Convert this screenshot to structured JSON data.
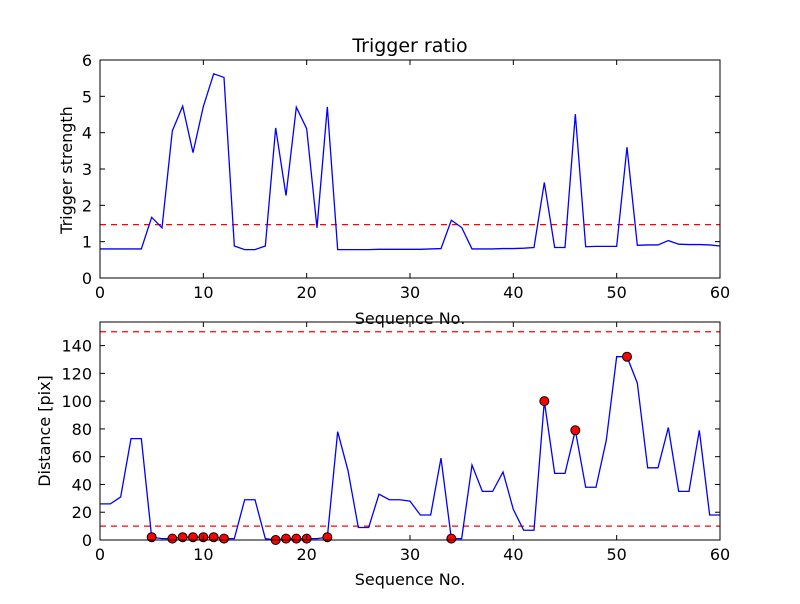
{
  "chart_data": [
    {
      "type": "line",
      "title": "Trigger ratio",
      "xlabel": "Sequence No.",
      "ylabel": "Trigger strength",
      "xlim": [
        0,
        60
      ],
      "ylim": [
        0,
        6
      ],
      "xticks": [
        0,
        10,
        20,
        30,
        40,
        50,
        60
      ],
      "yticks": [
        0,
        1,
        2,
        3,
        4,
        5,
        6
      ],
      "grid": false,
      "colors": {
        "series": "#0000ff",
        "threshold": "#ff0000"
      },
      "series": [
        {
          "x": [
            0,
            1,
            2,
            3,
            4,
            5,
            6,
            7,
            8,
            9,
            10,
            11,
            12,
            13,
            14,
            15,
            16,
            17,
            18,
            19,
            20,
            21,
            22,
            23,
            24,
            25,
            26,
            27,
            28,
            29,
            30,
            31,
            32,
            33,
            34,
            35,
            36,
            37,
            38,
            39,
            40,
            41,
            42,
            43,
            44,
            45,
            46,
            47,
            48,
            49,
            50,
            51,
            52,
            53,
            54,
            55,
            56,
            57,
            58,
            59,
            60
          ],
          "values": [
            0.8,
            0.8,
            0.8,
            0.8,
            0.8,
            1.67,
            1.38,
            4.05,
            4.73,
            3.45,
            4.72,
            5.62,
            5.52,
            0.88,
            0.78,
            0.78,
            0.88,
            4.13,
            2.27,
            4.7,
            4.11,
            1.38,
            4.71,
            0.78,
            0.78,
            0.78,
            0.78,
            0.79,
            0.79,
            0.79,
            0.79,
            0.79,
            0.8,
            0.81,
            1.59,
            1.39,
            0.8,
            0.8,
            0.8,
            0.81,
            0.81,
            0.82,
            0.84,
            2.63,
            0.84,
            0.84,
            4.51,
            0.86,
            0.87,
            0.87,
            0.87,
            3.6,
            0.9,
            0.91,
            0.91,
            1.03,
            0.93,
            0.92,
            0.92,
            0.91,
            0.88
          ]
        }
      ],
      "threshold": 1.47
    },
    {
      "type": "line",
      "title": "",
      "xlabel": "Sequence No.",
      "ylabel": "Distance [pix]",
      "xlim": [
        0,
        60
      ],
      "ylim": [
        0,
        157
      ],
      "xticks": [
        0,
        10,
        20,
        30,
        40,
        50,
        60
      ],
      "yticks": [
        0,
        20,
        40,
        60,
        80,
        100,
        120,
        140
      ],
      "grid": false,
      "colors": {
        "series": "#0000ff",
        "threshold": "#ff0000",
        "markers": "#ff0000"
      },
      "series": [
        {
          "x": [
            0,
            1,
            2,
            3,
            4,
            5,
            6,
            7,
            8,
            9,
            10,
            11,
            12,
            13,
            14,
            15,
            16,
            17,
            18,
            19,
            20,
            21,
            22,
            23,
            24,
            25,
            26,
            27,
            28,
            29,
            30,
            31,
            32,
            33,
            34,
            35,
            36,
            37,
            38,
            39,
            40,
            41,
            42,
            43,
            44,
            45,
            46,
            47,
            48,
            49,
            50,
            51,
            52,
            53,
            54,
            55,
            56,
            57,
            58,
            59,
            60
          ],
          "values": [
            26,
            26,
            31,
            73,
            73,
            2,
            1,
            1,
            2,
            2,
            2,
            2,
            1,
            1,
            29,
            29,
            1,
            0,
            1,
            1,
            1,
            1,
            2,
            78,
            50,
            9,
            9,
            33,
            29,
            29,
            28,
            18,
            18,
            59,
            1,
            1,
            54,
            35,
            35,
            49,
            22,
            7,
            7,
            100,
            48,
            48,
            79,
            38,
            38,
            72,
            132,
            132,
            113,
            52,
            52,
            81,
            35,
            35,
            79,
            18,
            18
          ]
        }
      ],
      "markers": {
        "x": [
          5,
          7,
          8,
          9,
          10,
          11,
          12,
          17,
          18,
          19,
          20,
          22,
          34,
          43,
          46,
          51
        ],
        "y": [
          2,
          1,
          2,
          2,
          2,
          2,
          1,
          0,
          1,
          1,
          1,
          2,
          1,
          100,
          79,
          132
        ]
      },
      "thresholds": [
        10,
        150
      ]
    }
  ]
}
